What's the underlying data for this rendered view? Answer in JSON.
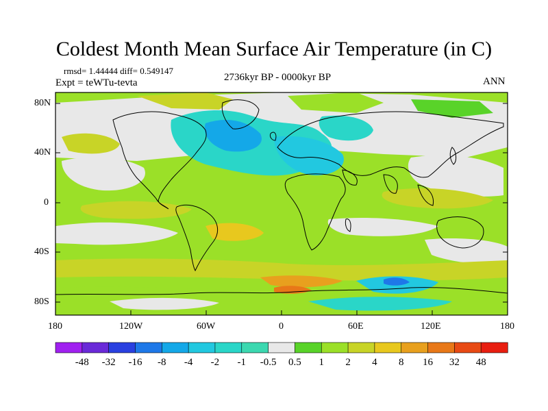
{
  "title": "Coldest Month Mean Surface Air Temperature (in C)",
  "info": {
    "rmsd": "rmsd= 1.44444 diff= 0.549147",
    "expt": "Expt = teWTu-tevta",
    "period": "2736kyr BP - 0000kyr BP",
    "season": "ANN"
  },
  "lat_labels": [
    "80N",
    "40N",
    "0",
    "40S",
    "80S"
  ],
  "lon_labels": [
    "180",
    "120W",
    "60W",
    "0",
    "60E",
    "120E",
    "180"
  ],
  "colorbar": {
    "labels": [
      "-48",
      "-32",
      "-16",
      "-8",
      "-4",
      "-2",
      "-1",
      "-0.5",
      "0.5",
      "1",
      "2",
      "4",
      "8",
      "16",
      "32",
      "48"
    ],
    "colors": [
      "#a020f0",
      "#6a2ad8",
      "#2a40e0",
      "#1e78e8",
      "#14a8e8",
      "#22c8e0",
      "#2ad6c8",
      "#3cd8b0",
      "#e8e8e8",
      "#59d329",
      "#9be028",
      "#c8d427",
      "#e8c81e",
      "#e8a01e",
      "#e87818",
      "#e84a14",
      "#e81e10"
    ]
  }
}
